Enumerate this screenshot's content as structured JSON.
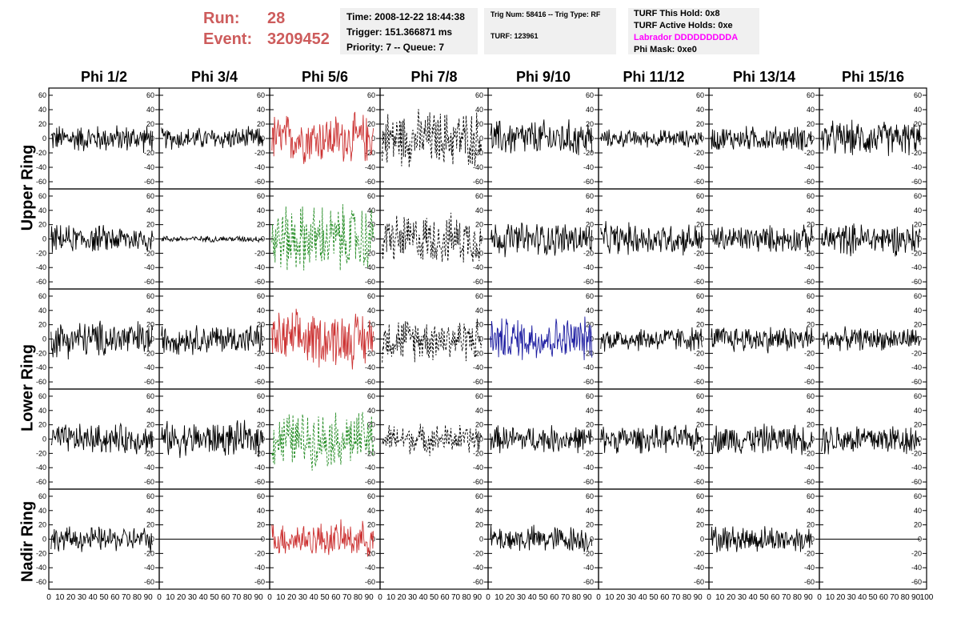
{
  "header": {
    "run_label": "Run:",
    "run_value": "28",
    "event_label": "Event:",
    "event_value": "3209452",
    "time": "Time: 2008-12-22 18:44:38",
    "trigger": "Trigger: 151.366871 ms",
    "priority": "Priority: 7 -- Queue: 7",
    "trig_num": "Trig Num: 58416 -- Trig Type: RF",
    "turf_id": "TURF: 123961",
    "turf_this_hold": "TURF This Hold: 0x8",
    "turf_active_holds": "TURF Active Holds: 0xe",
    "labrador": "Labrador DDDDDDDDDA",
    "phi_mask": "Phi Mask: 0xe0"
  },
  "columns": [
    "Phi 1/2",
    "Phi 3/4",
    "Phi 5/6",
    "Phi 7/8",
    "Phi 9/10",
    "Phi 11/12",
    "Phi 13/14",
    "Phi 15/16"
  ],
  "rings": [
    "Upper Ring",
    "Lower Ring",
    "Nadir Ring"
  ],
  "colors": {
    "red": "#cc3333",
    "green": "#228b22",
    "blue": "#1a1aa0",
    "black": "#000000",
    "run_text": "#cd5c5c",
    "labrador": "#ff00ff"
  },
  "chart_data": {
    "type": "line",
    "ylim": [
      -70,
      70
    ],
    "xlim": [
      0,
      100
    ],
    "y_ticks": [
      -60,
      -40,
      -20,
      0,
      20,
      40,
      60
    ],
    "x_ticks": [
      0,
      10,
      20,
      30,
      40,
      50,
      60,
      70,
      80,
      90,
      100
    ],
    "panels": [
      {
        "row": 0,
        "col": 0,
        "style": "solid",
        "color": "black",
        "amplitude": 22
      },
      {
        "row": 0,
        "col": 1,
        "style": "solid",
        "color": "black",
        "amplitude": 18
      },
      {
        "row": 0,
        "col": 2,
        "style": "solid",
        "color": "red",
        "amplitude": 40
      },
      {
        "row": 0,
        "col": 3,
        "style": "dashed",
        "color": "black",
        "amplitude": 45
      },
      {
        "row": 0,
        "col": 4,
        "style": "solid",
        "color": "black",
        "amplitude": 30
      },
      {
        "row": 0,
        "col": 5,
        "style": "solid",
        "color": "black",
        "amplitude": 14
      },
      {
        "row": 0,
        "col": 6,
        "style": "solid",
        "color": "black",
        "amplitude": 20
      },
      {
        "row": 0,
        "col": 7,
        "style": "solid",
        "color": "black",
        "amplitude": 28
      },
      {
        "row": 1,
        "col": 0,
        "style": "solid",
        "color": "black",
        "amplitude": 22
      },
      {
        "row": 1,
        "col": 1,
        "style": "solid",
        "color": "black",
        "amplitude": 5
      },
      {
        "row": 1,
        "col": 2,
        "style": "dashed",
        "color": "green",
        "amplitude": 55
      },
      {
        "row": 1,
        "col": 3,
        "style": "dashed",
        "color": "black",
        "amplitude": 40
      },
      {
        "row": 1,
        "col": 4,
        "style": "solid",
        "color": "black",
        "amplitude": 28
      },
      {
        "row": 1,
        "col": 5,
        "style": "solid",
        "color": "black",
        "amplitude": 26
      },
      {
        "row": 1,
        "col": 6,
        "style": "solid",
        "color": "black",
        "amplitude": 22
      },
      {
        "row": 1,
        "col": 7,
        "style": "solid",
        "color": "black",
        "amplitude": 26
      },
      {
        "row": 2,
        "col": 0,
        "style": "solid",
        "color": "black",
        "amplitude": 30
      },
      {
        "row": 2,
        "col": 1,
        "style": "solid",
        "color": "black",
        "amplitude": 24
      },
      {
        "row": 2,
        "col": 2,
        "style": "solid",
        "color": "red",
        "amplitude": 45
      },
      {
        "row": 2,
        "col": 3,
        "style": "dashed",
        "color": "black",
        "amplitude": 35
      },
      {
        "row": 2,
        "col": 4,
        "style": "solid",
        "color": "blue",
        "amplitude": 35
      },
      {
        "row": 2,
        "col": 5,
        "style": "solid",
        "color": "black",
        "amplitude": 20
      },
      {
        "row": 2,
        "col": 6,
        "style": "solid",
        "color": "black",
        "amplitude": 22
      },
      {
        "row": 2,
        "col": 7,
        "style": "solid",
        "color": "black",
        "amplitude": 18
      },
      {
        "row": 3,
        "col": 0,
        "style": "solid",
        "color": "black",
        "amplitude": 24
      },
      {
        "row": 3,
        "col": 1,
        "style": "solid",
        "color": "black",
        "amplitude": 28
      },
      {
        "row": 3,
        "col": 2,
        "style": "dashed",
        "color": "green",
        "amplitude": 45
      },
      {
        "row": 3,
        "col": 3,
        "style": "dashed",
        "color": "black",
        "amplitude": 24
      },
      {
        "row": 3,
        "col": 4,
        "style": "solid",
        "color": "black",
        "amplitude": 22
      },
      {
        "row": 3,
        "col": 5,
        "style": "solid",
        "color": "black",
        "amplitude": 22
      },
      {
        "row": 3,
        "col": 6,
        "style": "solid",
        "color": "black",
        "amplitude": 24
      },
      {
        "row": 3,
        "col": 7,
        "style": "solid",
        "color": "black",
        "amplitude": 26
      },
      {
        "row": 4,
        "col": 0,
        "style": "solid",
        "color": "black",
        "amplitude": 20
      },
      {
        "row": 4,
        "col": 1,
        "style": "solid",
        "color": "black",
        "amplitude": 0
      },
      {
        "row": 4,
        "col": 2,
        "style": "solid",
        "color": "red",
        "amplitude": 28
      },
      {
        "row": 4,
        "col": 3,
        "style": "none",
        "color": "black",
        "amplitude": 0
      },
      {
        "row": 4,
        "col": 4,
        "style": "solid",
        "color": "black",
        "amplitude": 22
      },
      {
        "row": 4,
        "col": 5,
        "style": "none",
        "color": "black",
        "amplitude": 0
      },
      {
        "row": 4,
        "col": 6,
        "style": "solid",
        "color": "black",
        "amplitude": 22
      },
      {
        "row": 4,
        "col": 7,
        "style": "solid",
        "color": "black",
        "amplitude": 0
      }
    ]
  }
}
